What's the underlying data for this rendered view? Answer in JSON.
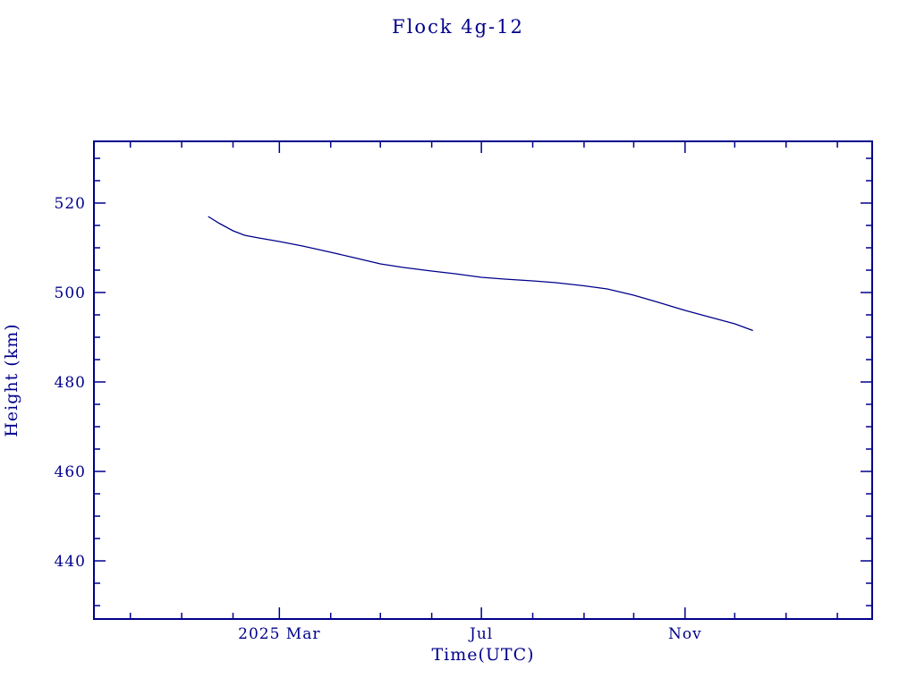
{
  "page": {
    "background": "#ffffff"
  },
  "chart_data": {
    "type": "line",
    "title": "Flock 4g-12",
    "xlabel": "Time(UTC)",
    "ylabel": "Height (km)",
    "color": "#00008b",
    "grid": false,
    "legend": "none",
    "ylim": [
      427.0,
      533.8
    ],
    "y_ticks": [
      440,
      460,
      480,
      500,
      520
    ],
    "y_minor_step": 5,
    "x_axis": {
      "start": "2024-11-09",
      "end": "2026-02-22",
      "major_ticks": [
        {
          "date": "2025-03-01",
          "label": "2025 Mar"
        },
        {
          "date": "2025-07-01",
          "label": "Jul"
        },
        {
          "date": "2025-11-01",
          "label": "Nov"
        }
      ],
      "minor_ticks": "monthly"
    },
    "series": [
      {
        "name": "height-km",
        "points": [
          {
            "d": "2025-01-17",
            "h": 517.0
          },
          {
            "d": "2025-01-24",
            "h": 515.4
          },
          {
            "d": "2025-02-01",
            "h": 513.8
          },
          {
            "d": "2025-02-08",
            "h": 512.8
          },
          {
            "d": "2025-02-15",
            "h": 512.3
          },
          {
            "d": "2025-03-01",
            "h": 511.4
          },
          {
            "d": "2025-03-15",
            "h": 510.4
          },
          {
            "d": "2025-04-01",
            "h": 509.0
          },
          {
            "d": "2025-04-15",
            "h": 507.8
          },
          {
            "d": "2025-05-01",
            "h": 506.4
          },
          {
            "d": "2025-05-15",
            "h": 505.6
          },
          {
            "d": "2025-06-01",
            "h": 504.8
          },
          {
            "d": "2025-06-15",
            "h": 504.2
          },
          {
            "d": "2025-07-01",
            "h": 503.4
          },
          {
            "d": "2025-07-15",
            "h": 503.0
          },
          {
            "d": "2025-08-01",
            "h": 502.6
          },
          {
            "d": "2025-08-15",
            "h": 502.2
          },
          {
            "d": "2025-09-01",
            "h": 501.5
          },
          {
            "d": "2025-09-15",
            "h": 500.8
          },
          {
            "d": "2025-10-01",
            "h": 499.4
          },
          {
            "d": "2025-10-15",
            "h": 497.9
          },
          {
            "d": "2025-11-01",
            "h": 496.0
          },
          {
            "d": "2025-11-15",
            "h": 494.6
          },
          {
            "d": "2025-12-01",
            "h": 493.0
          },
          {
            "d": "2025-12-12",
            "h": 491.5
          }
        ]
      }
    ]
  }
}
